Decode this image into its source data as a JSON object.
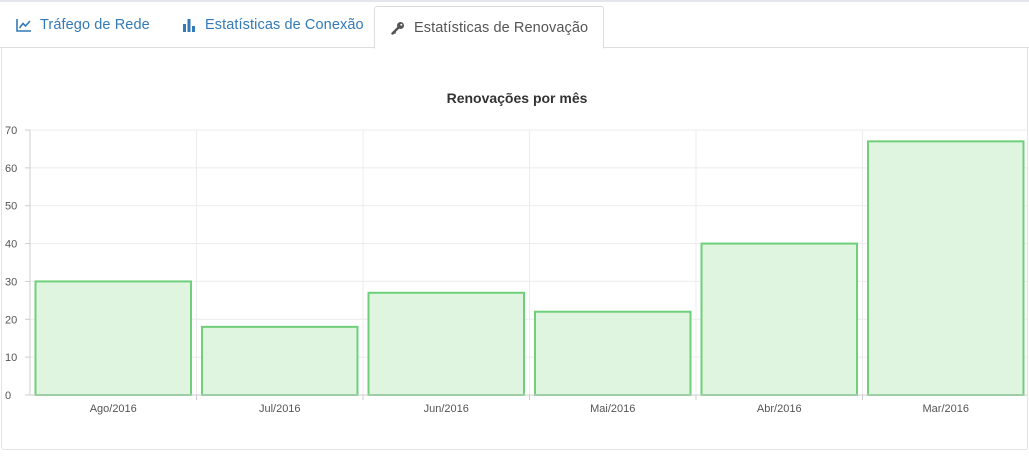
{
  "tabs": [
    {
      "label": "Tráfego de Rede",
      "icon": "line-chart-icon",
      "active": false
    },
    {
      "label": "Estatísticas de Conexão",
      "icon": "bar-chart-icon",
      "active": false
    },
    {
      "label": "Estatísticas de Renovação",
      "icon": "key-icon",
      "active": true
    }
  ],
  "colors": {
    "link": "#337ab7",
    "bar_fill": "#dff5e0",
    "bar_stroke": "#6fcf7a",
    "grid": "#ececec",
    "axis": "#cccccc"
  },
  "chart_data": {
    "type": "bar",
    "title": "Renovações por mês",
    "categories": [
      "Ago/2016",
      "Jul/2016",
      "Jun/2016",
      "Mai/2016",
      "Abr/2016",
      "Mar/2016"
    ],
    "values": [
      30,
      18,
      27,
      22,
      40,
      67
    ],
    "ylim": [
      0,
      70
    ],
    "yticks": [
      0,
      10,
      20,
      30,
      40,
      50,
      60,
      70
    ],
    "xlabel": "",
    "ylabel": "",
    "grid": true,
    "legend": "none"
  }
}
